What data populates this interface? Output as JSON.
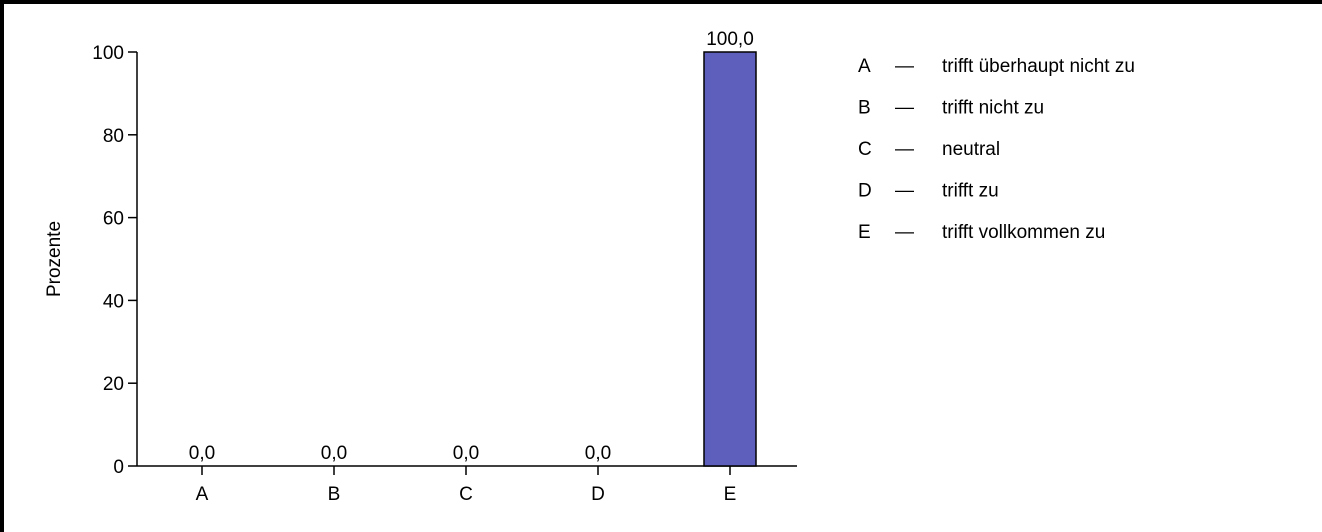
{
  "chart_data": {
    "type": "bar",
    "ylabel": "Prozente",
    "ylim": [
      0,
      100
    ],
    "yticks": [
      "0",
      "20",
      "40",
      "60",
      "80",
      "100"
    ],
    "categories": [
      "A",
      "B",
      "C",
      "D",
      "E"
    ],
    "values": [
      0,
      0,
      0,
      0,
      100
    ],
    "value_labels": [
      "0,0",
      "0,0",
      "0,0",
      "0,0",
      "100,0"
    ],
    "bar_color": "#5e5fbd",
    "legend": [
      {
        "key": "A",
        "sep": "—",
        "label": "trifft überhaupt nicht zu"
      },
      {
        "key": "B",
        "sep": "—",
        "label": "trifft nicht zu"
      },
      {
        "key": "C",
        "sep": "—",
        "label": "neutral"
      },
      {
        "key": "D",
        "sep": "—",
        "label": "trifft zu"
      },
      {
        "key": "E",
        "sep": "—",
        "label": "trifft vollkommen zu"
      }
    ],
    "legend_position": "top-right",
    "grid": false
  }
}
